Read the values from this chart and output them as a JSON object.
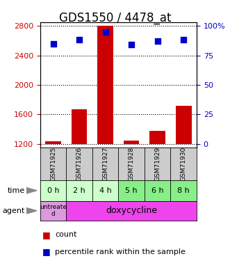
{
  "title": "GDS1550 / 4478_at",
  "samples": [
    "GSM71925",
    "GSM71926",
    "GSM71927",
    "GSM71928",
    "GSM71929",
    "GSM71930"
  ],
  "times": [
    "0 h",
    "2 h",
    "4 h",
    "5 h",
    "6 h",
    "8 h"
  ],
  "agent_first": "untreate\nd",
  "agent_rest": "doxycycline",
  "counts": [
    1230,
    1670,
    2800,
    1245,
    1380,
    1720
  ],
  "percentiles": [
    85,
    88,
    95,
    84,
    87,
    88
  ],
  "ymin": 1150,
  "ymax": 2850,
  "yticks": [
    1200,
    1600,
    2000,
    2400,
    2800
  ],
  "right_yticks": [
    0,
    25,
    50,
    75,
    100
  ],
  "bar_color": "#cc0000",
  "dot_color": "#0000cc",
  "sample_bg": "#cccccc",
  "time_colors": [
    "#ccffcc",
    "#ccffcc",
    "#ccffcc",
    "#88ee88",
    "#88ee88",
    "#88ee88"
  ],
  "agent_first_bg": "#dd99dd",
  "agent_rest_bg": "#ee44ee",
  "title_fontsize": 12,
  "tick_fontsize": 8,
  "cell_fontsize": 8,
  "legend_fontsize": 8
}
